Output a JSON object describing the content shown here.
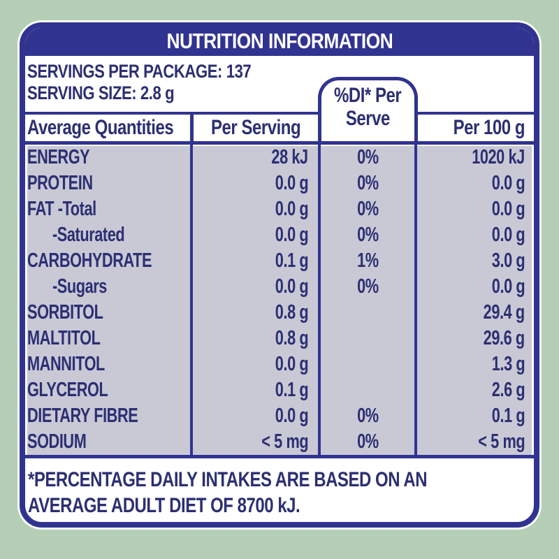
{
  "colors": {
    "background_green": "#b4cfb5",
    "navy_border": "#313390",
    "navy_text": "#2c2f72",
    "table_body_lavender": "#c9c9d6",
    "panel_white": "#ffffff"
  },
  "label": {
    "title": "NUTRITION INFORMATION",
    "servings_per_package": "SERVINGS PER PACKAGE: 137",
    "serving_size": "SERVING SIZE: 2.8 g",
    "header": {
      "col1": "Average Quantities",
      "col2": "Per Serving",
      "col3_line1": "%DI* Per",
      "col3_line2": "Serve",
      "col4": "Per 100 g"
    },
    "rows": [
      {
        "name": "ENERGY",
        "indent": false,
        "per_serving": "28 kJ",
        "di_per_serve": "0%",
        "per_100g": "1020 kJ"
      },
      {
        "name": "PROTEIN",
        "indent": false,
        "per_serving": "0.0 g",
        "di_per_serve": "0%",
        "per_100g": "0.0 g"
      },
      {
        "name": "FAT  -Total",
        "indent": false,
        "per_serving": "0.0 g",
        "di_per_serve": "0%",
        "per_100g": "0.0 g"
      },
      {
        "name": "-Saturated",
        "indent": true,
        "per_serving": "0.0 g",
        "di_per_serve": "0%",
        "per_100g": "0.0 g"
      },
      {
        "name": "CARBOHYDRATE",
        "indent": false,
        "per_serving": "0.1 g",
        "di_per_serve": "1%",
        "per_100g": "3.0 g"
      },
      {
        "name": "-Sugars",
        "indent": true,
        "per_serving": "0.0 g",
        "di_per_serve": "0%",
        "per_100g": "0.0 g"
      },
      {
        "name": "SORBITOL",
        "indent": false,
        "per_serving": "0.8 g",
        "di_per_serve": "",
        "per_100g": "29.4 g"
      },
      {
        "name": "MALTITOL",
        "indent": false,
        "per_serving": "0.8 g",
        "di_per_serve": "",
        "per_100g": "29.6 g"
      },
      {
        "name": "MANNITOL",
        "indent": false,
        "per_serving": "0.0 g",
        "di_per_serve": "",
        "per_100g": "1.3 g"
      },
      {
        "name": "GLYCEROL",
        "indent": false,
        "per_serving": "0.1 g",
        "di_per_serve": "",
        "per_100g": "2.6 g"
      },
      {
        "name": "DIETARY FIBRE",
        "indent": false,
        "per_serving": "0.0 g",
        "di_per_serve": "0%",
        "per_100g": "0.1 g"
      },
      {
        "name": "SODIUM",
        "indent": false,
        "per_serving": "< 5 mg",
        "di_per_serve": "0%",
        "per_100g": "< 5 mg"
      }
    ],
    "footnote_line1": "*PERCENTAGE DAILY INTAKES ARE BASED ON AN",
    "footnote_line2": "AVERAGE ADULT DIET OF 8700 kJ."
  }
}
